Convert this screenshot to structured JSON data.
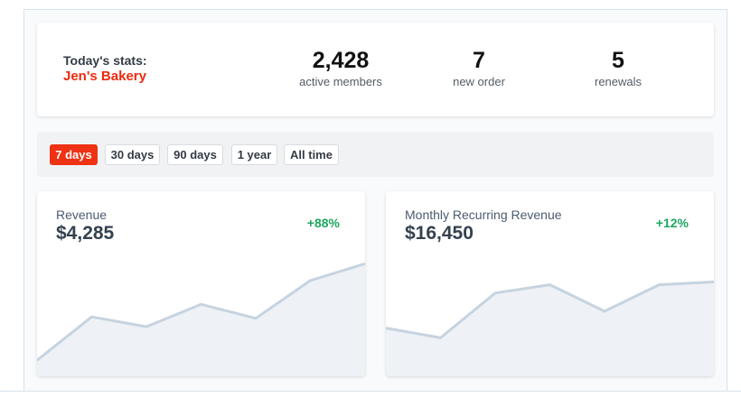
{
  "stats": {
    "label": "Today's stats:",
    "business_name": "Jen's Bakery",
    "items": [
      {
        "value": "2,428",
        "label": "active members"
      },
      {
        "value": "7",
        "label": "new order"
      },
      {
        "value": "5",
        "label": "renewals"
      }
    ]
  },
  "filters": {
    "options": [
      "7 days",
      "30 days",
      "90 days",
      "1 year",
      "All time"
    ],
    "selected": "7 days"
  },
  "charts": [
    {
      "title": "Revenue",
      "value": "$4,285",
      "change": "+88%",
      "trend": [
        0.05,
        0.36,
        0.29,
        0.45,
        0.35,
        0.62,
        0.74
      ]
    },
    {
      "title": "Monthly Recurring Revenue",
      "value": "$16,450",
      "change": "+12%",
      "trend": [
        0.28,
        0.21,
        0.53,
        0.59,
        0.4,
        0.59,
        0.61
      ]
    }
  ],
  "colors": {
    "accent": "#ee3214",
    "positive": "#1ea660",
    "line": "#c6d3e0",
    "area": "#eef2f6"
  }
}
